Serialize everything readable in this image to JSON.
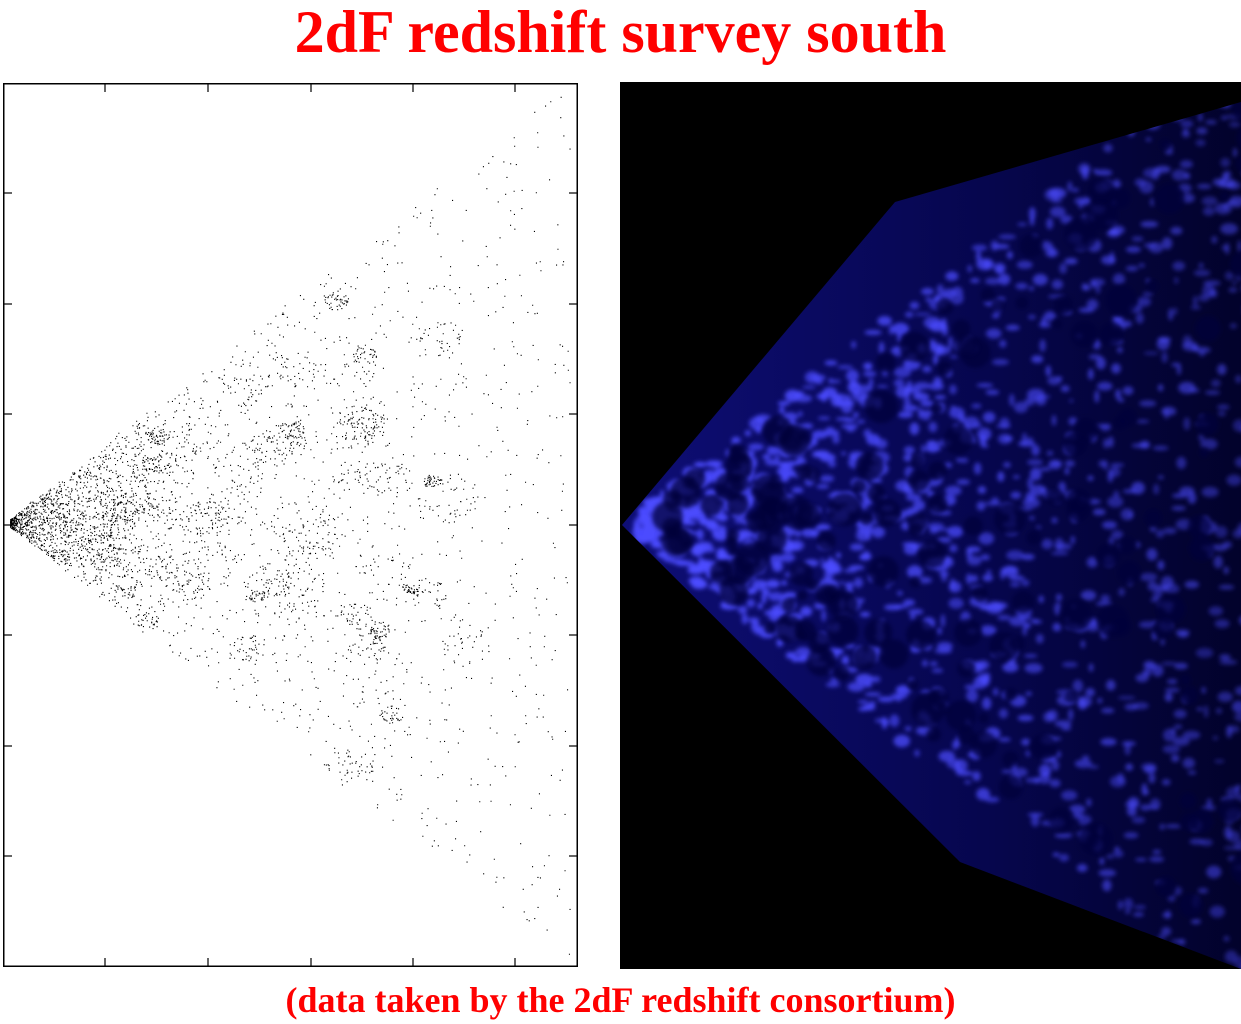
{
  "title": "2dF redshift survey south",
  "caption": "(data taken by the 2dF redshift consortium)",
  "colors": {
    "title_text": "#ff0000",
    "scatter_points": "#000000",
    "density_map_background": "#000000",
    "density_map_glow": "#4b4bff"
  },
  "panels": {
    "left": "galaxy-scatter-plot",
    "right": "density-field-map"
  }
}
